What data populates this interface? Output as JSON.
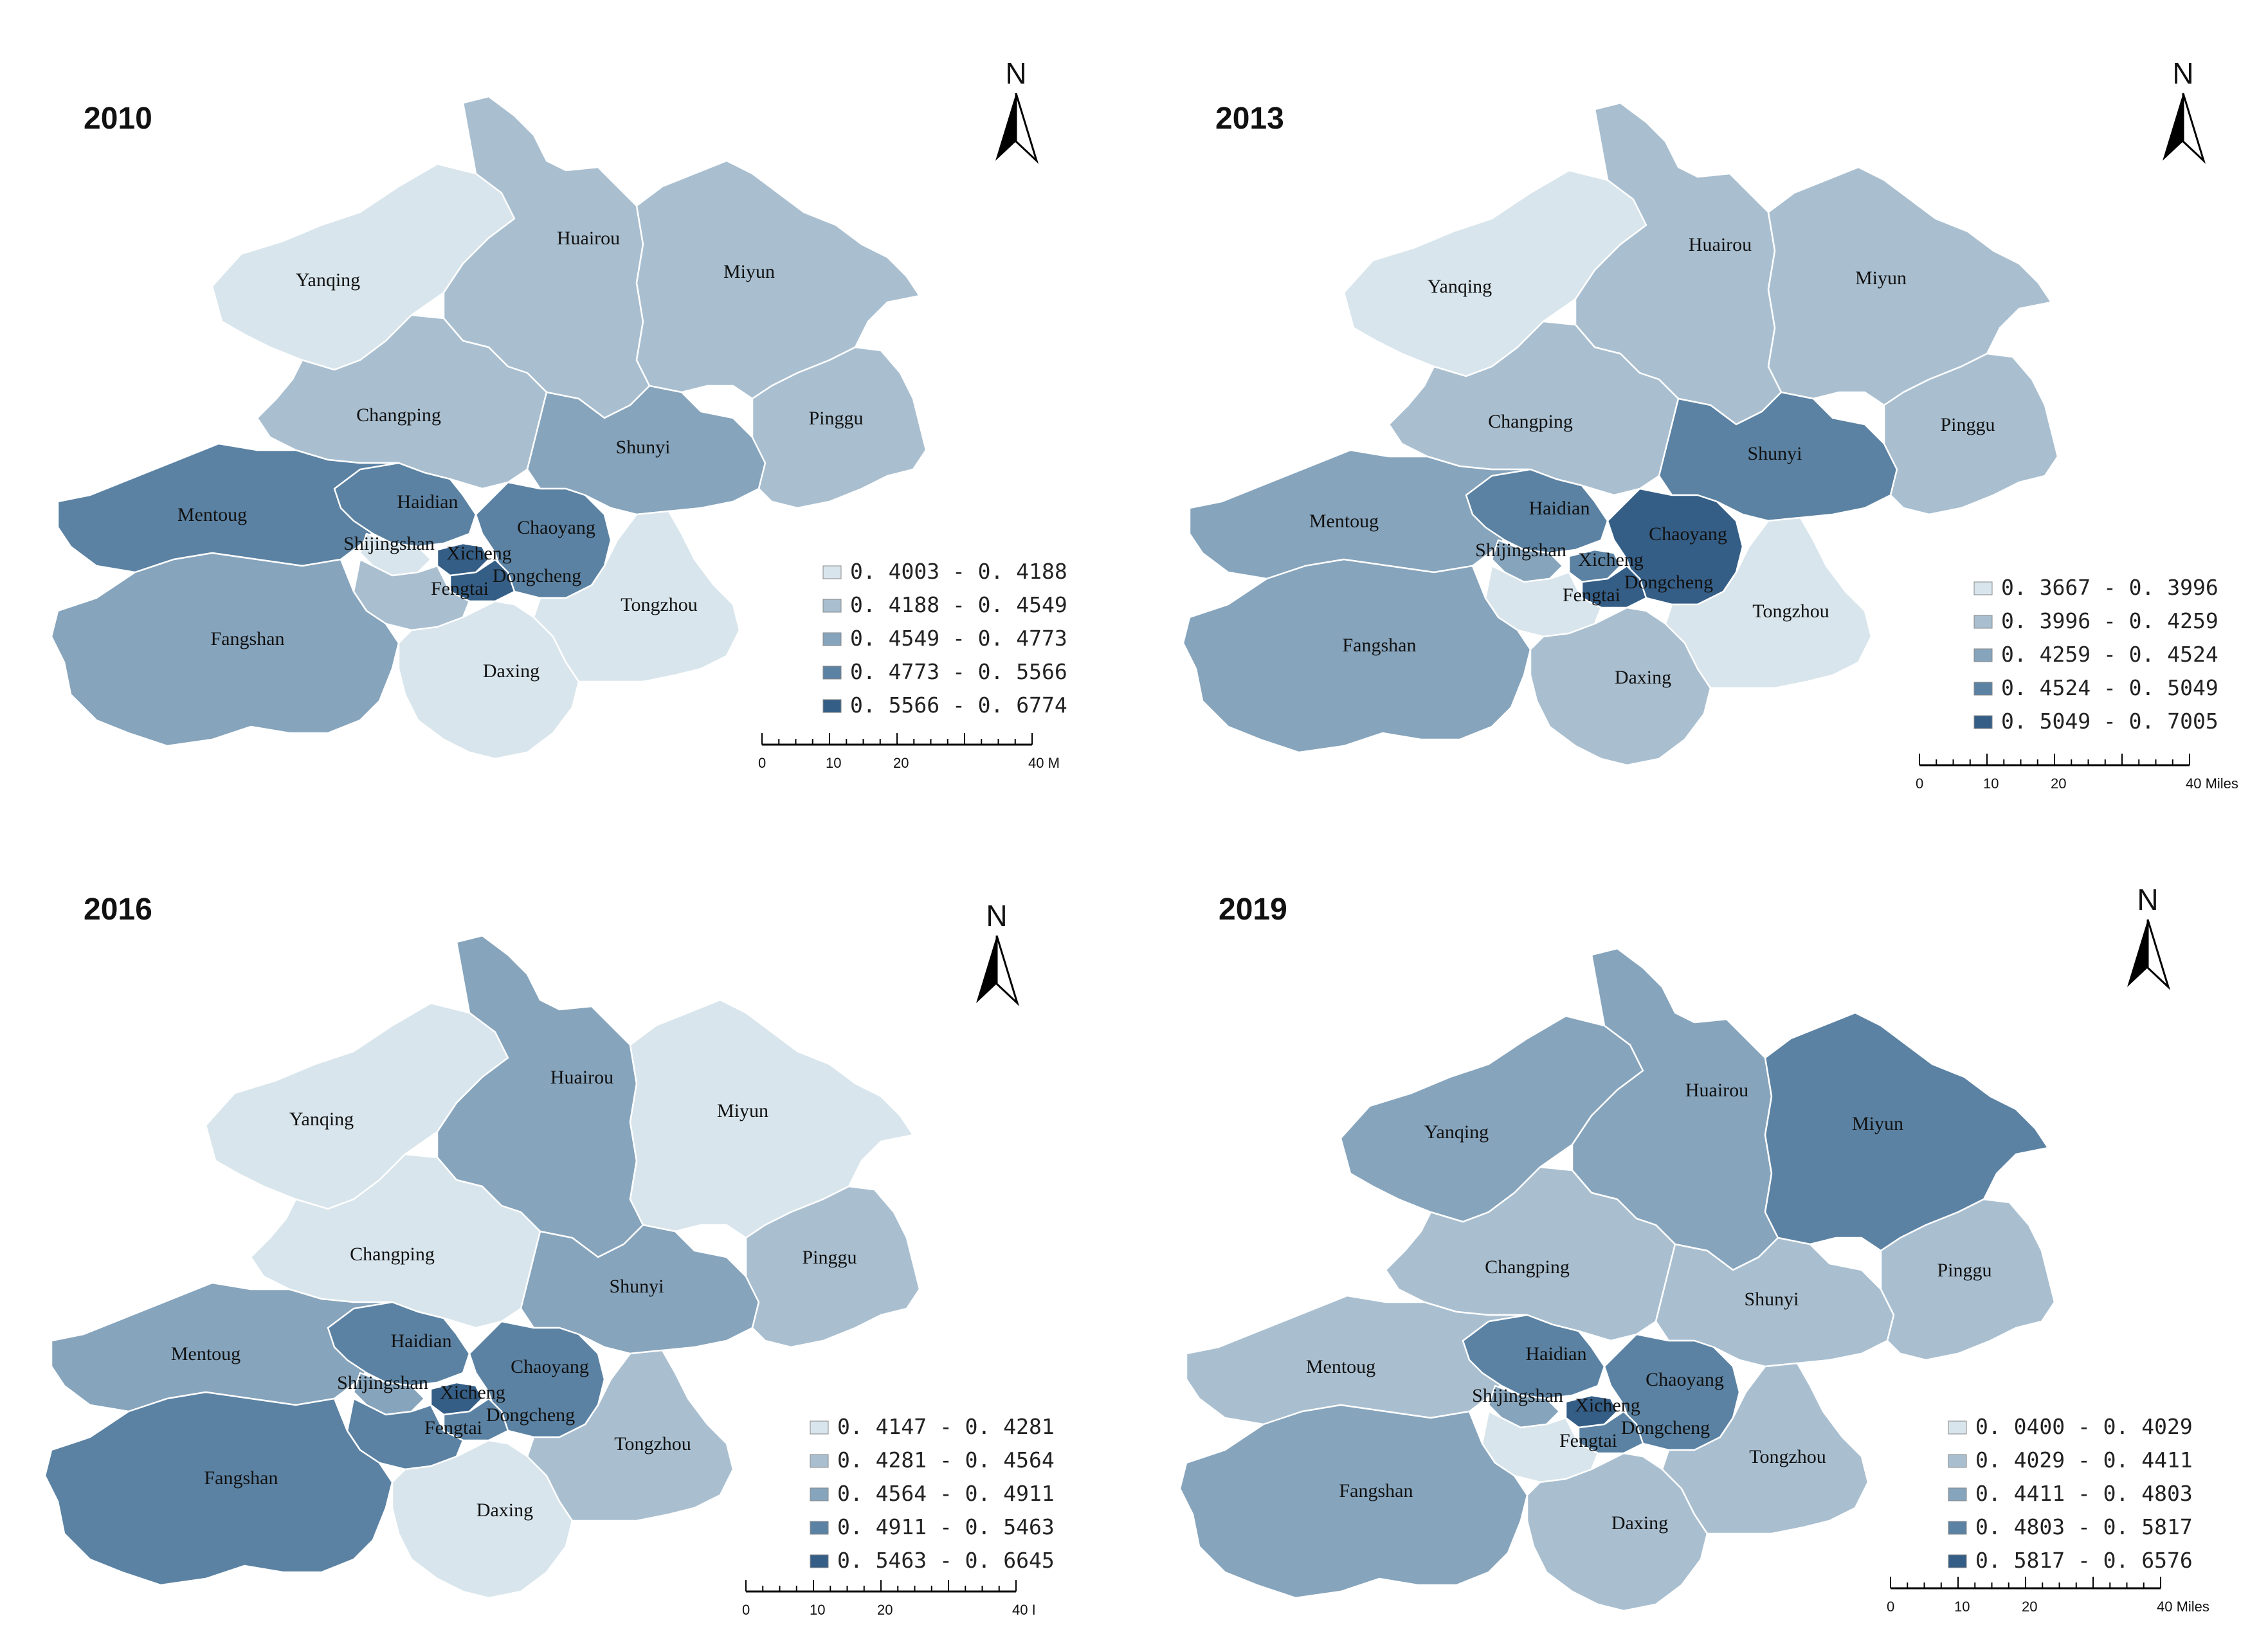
{
  "colors": {
    "class1": "#d8e5ec",
    "class2": "#a9bfd0",
    "class3": "#86a4bc",
    "class4": "#5b82a3",
    "class5": "#355e86"
  },
  "north_label": "N",
  "maps": [
    {
      "year": "2010",
      "scale": {
        "ticks": [
          "0",
          "10",
          "20",
          "40 M"
        ]
      },
      "legend": [
        "0. 4003 - 0. 4188",
        "0. 4188 - 0. 4549",
        "0. 4549 - 0. 4773",
        "0. 4773 - 0. 5566",
        "0. 5566 - 0. 6774"
      ],
      "districts": {
        "Yanqing": 1,
        "Huairou": 2,
        "Miyun": 2,
        "Changping": 2,
        "Shunyi": 3,
        "Pinggu": 2,
        "Mentoug": 4,
        "Haidian": 4,
        "Shijingshan": 1,
        "Chaoyang": 4,
        "Xicheng": 5,
        "Dongcheng": 5,
        "Fengtai": 2,
        "Fangshan": 3,
        "Daxing": 1,
        "Tongzhou": 1
      }
    },
    {
      "year": "2013",
      "scale": {
        "ticks": [
          "0",
          "10",
          "20",
          "40 Miles"
        ]
      },
      "legend": [
        "0. 3667 - 0. 3996",
        "0. 3996 - 0. 4259",
        "0. 4259 - 0. 4524",
        "0. 4524 - 0. 5049",
        "0. 5049 - 0. 7005"
      ],
      "districts": {
        "Yanqing": 1,
        "Huairou": 2,
        "Miyun": 2,
        "Changping": 2,
        "Shunyi": 4,
        "Pinggu": 2,
        "Mentoug": 3,
        "Haidian": 4,
        "Shijingshan": 3,
        "Chaoyang": 5,
        "Xicheng": 4,
        "Dongcheng": 5,
        "Fengtai": 1,
        "Fangshan": 3,
        "Daxing": 2,
        "Tongzhou": 1
      }
    },
    {
      "year": "2016",
      "scale": {
        "ticks": [
          "0",
          "10",
          "20",
          "40 I"
        ]
      },
      "legend": [
        "0. 4147 - 0. 4281",
        "0. 4281 - 0. 4564",
        "0. 4564 - 0. 4911",
        "0. 4911 - 0. 5463",
        "0. 5463 - 0. 6645"
      ],
      "districts": {
        "Yanqing": 1,
        "Huairou": 3,
        "Miyun": 1,
        "Changping": 1,
        "Shunyi": 3,
        "Pinggu": 2,
        "Mentoug": 3,
        "Haidian": 4,
        "Shijingshan": 3,
        "Chaoyang": 4,
        "Xicheng": 5,
        "Dongcheng": 4,
        "Fengtai": 4,
        "Fangshan": 4,
        "Daxing": 1,
        "Tongzhou": 2
      }
    },
    {
      "year": "2019",
      "scale": {
        "ticks": [
          "0",
          "10",
          "20",
          "40 Miles"
        ]
      },
      "legend": [
        "0. 0400 - 0. 4029",
        "0. 4029 - 0. 4411",
        "0. 4411 - 0. 4803",
        "0. 4803 - 0. 5817",
        "0. 5817 - 0. 6576"
      ],
      "districts": {
        "Yanqing": 3,
        "Huairou": 3,
        "Miyun": 4,
        "Changping": 2,
        "Shunyi": 2,
        "Pinggu": 2,
        "Mentoug": 2,
        "Haidian": 4,
        "Shijingshan": 3,
        "Chaoyang": 4,
        "Xicheng": 5,
        "Dongcheng": 4,
        "Fengtai": 1,
        "Fangshan": 3,
        "Daxing": 2,
        "Tongzhou": 2
      }
    }
  ]
}
